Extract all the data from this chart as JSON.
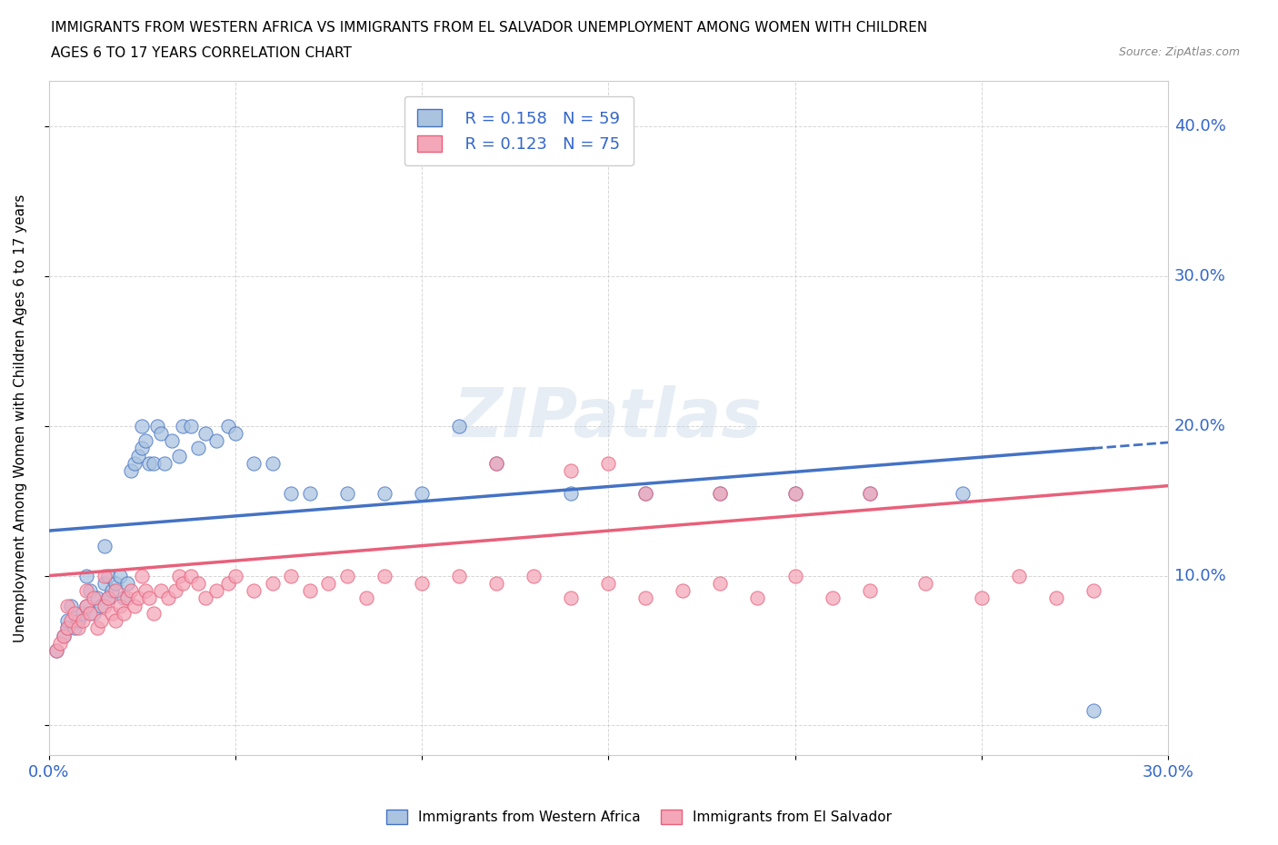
{
  "title_line1": "IMMIGRANTS FROM WESTERN AFRICA VS IMMIGRANTS FROM EL SALVADOR UNEMPLOYMENT AMONG WOMEN WITH CHILDREN",
  "title_line2": "AGES 6 TO 17 YEARS CORRELATION CHART",
  "source": "Source: ZipAtlas.com",
  "ylabel": "Unemployment Among Women with Children Ages 6 to 17 years",
  "xlim": [
    0.0,
    0.3
  ],
  "ylim": [
    -0.02,
    0.43
  ],
  "xticks": [
    0.0,
    0.05,
    0.1,
    0.15,
    0.2,
    0.25,
    0.3
  ],
  "yticks": [
    0.0,
    0.1,
    0.2,
    0.3,
    0.4
  ],
  "color_blue": "#aac4e0",
  "color_pink": "#f4a7b9",
  "line_blue": "#4472c4",
  "line_pink": "#e8607a",
  "legend_r1": "R = 0.158",
  "legend_n1": "N = 59",
  "legend_r2": "R = 0.123",
  "legend_n2": "N = 75",
  "blue_scatter_x": [
    0.002,
    0.004,
    0.005,
    0.005,
    0.006,
    0.007,
    0.008,
    0.009,
    0.01,
    0.01,
    0.011,
    0.012,
    0.013,
    0.014,
    0.015,
    0.015,
    0.016,
    0.016,
    0.017,
    0.018,
    0.019,
    0.02,
    0.021,
    0.022,
    0.023,
    0.024,
    0.025,
    0.025,
    0.026,
    0.027,
    0.028,
    0.029,
    0.03,
    0.031,
    0.033,
    0.035,
    0.036,
    0.038,
    0.04,
    0.042,
    0.045,
    0.048,
    0.05,
    0.055,
    0.06,
    0.065,
    0.07,
    0.08,
    0.09,
    0.1,
    0.11,
    0.12,
    0.14,
    0.16,
    0.18,
    0.2,
    0.22,
    0.245,
    0.28
  ],
  "blue_scatter_y": [
    0.05,
    0.06,
    0.065,
    0.07,
    0.08,
    0.065,
    0.07,
    0.075,
    0.08,
    0.1,
    0.09,
    0.075,
    0.085,
    0.08,
    0.095,
    0.12,
    0.085,
    0.1,
    0.09,
    0.095,
    0.1,
    0.085,
    0.095,
    0.17,
    0.175,
    0.18,
    0.185,
    0.2,
    0.19,
    0.175,
    0.175,
    0.2,
    0.195,
    0.175,
    0.19,
    0.18,
    0.2,
    0.2,
    0.185,
    0.195,
    0.19,
    0.2,
    0.195,
    0.175,
    0.175,
    0.155,
    0.155,
    0.155,
    0.155,
    0.155,
    0.2,
    0.175,
    0.155,
    0.155,
    0.155,
    0.155,
    0.155,
    0.155,
    0.01
  ],
  "pink_scatter_x": [
    0.002,
    0.003,
    0.004,
    0.005,
    0.005,
    0.006,
    0.007,
    0.008,
    0.009,
    0.01,
    0.01,
    0.011,
    0.012,
    0.013,
    0.014,
    0.015,
    0.015,
    0.016,
    0.017,
    0.018,
    0.018,
    0.019,
    0.02,
    0.021,
    0.022,
    0.023,
    0.024,
    0.025,
    0.026,
    0.027,
    0.028,
    0.03,
    0.032,
    0.034,
    0.035,
    0.036,
    0.038,
    0.04,
    0.042,
    0.045,
    0.048,
    0.05,
    0.055,
    0.06,
    0.065,
    0.07,
    0.075,
    0.08,
    0.085,
    0.09,
    0.1,
    0.11,
    0.12,
    0.13,
    0.14,
    0.15,
    0.16,
    0.17,
    0.18,
    0.19,
    0.2,
    0.21,
    0.22,
    0.235,
    0.25,
    0.26,
    0.27,
    0.28,
    0.12,
    0.14,
    0.15,
    0.16,
    0.18,
    0.2,
    0.22
  ],
  "pink_scatter_y": [
    0.05,
    0.055,
    0.06,
    0.065,
    0.08,
    0.07,
    0.075,
    0.065,
    0.07,
    0.08,
    0.09,
    0.075,
    0.085,
    0.065,
    0.07,
    0.08,
    0.1,
    0.085,
    0.075,
    0.07,
    0.09,
    0.08,
    0.075,
    0.085,
    0.09,
    0.08,
    0.085,
    0.1,
    0.09,
    0.085,
    0.075,
    0.09,
    0.085,
    0.09,
    0.1,
    0.095,
    0.1,
    0.095,
    0.085,
    0.09,
    0.095,
    0.1,
    0.09,
    0.095,
    0.1,
    0.09,
    0.095,
    0.1,
    0.085,
    0.1,
    0.095,
    0.1,
    0.095,
    0.1,
    0.085,
    0.095,
    0.085,
    0.09,
    0.095,
    0.085,
    0.1,
    0.085,
    0.09,
    0.095,
    0.085,
    0.1,
    0.085,
    0.09,
    0.175,
    0.17,
    0.175,
    0.155,
    0.155,
    0.155,
    0.155
  ]
}
